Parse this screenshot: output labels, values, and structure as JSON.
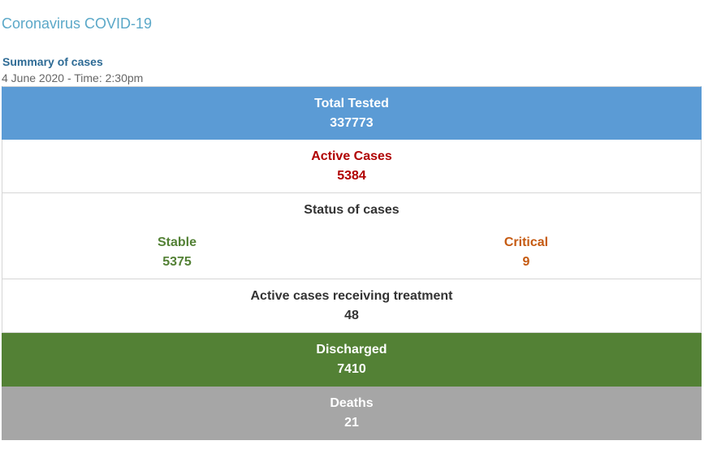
{
  "page_title": "Coronavirus COVID-19",
  "summary": {
    "heading": "Summary of cases",
    "date": "4 June 2020 - Time: 2:30pm"
  },
  "rows": {
    "total_tested": {
      "label": "Total Tested",
      "value": "337773"
    },
    "active_cases": {
      "label": "Active Cases",
      "value": "5384"
    },
    "status": {
      "label": "Status of cases",
      "stable": {
        "label": "Stable",
        "value": "5375"
      },
      "critical": {
        "label": "Critical",
        "value": "9"
      }
    },
    "treatment": {
      "label": "Active cases receiving treatment",
      "value": "48"
    },
    "discharged": {
      "label": "Discharged",
      "value": "7410"
    },
    "deaths": {
      "label": "Deaths",
      "value": "21"
    }
  },
  "colors": {
    "title": "#5ba8c8",
    "heading": "#2e6b95",
    "tested_bg": "#5b9bd5",
    "active_text": "#b00000",
    "stable_text": "#538135",
    "critical_text": "#c55a11",
    "discharged_bg": "#538135",
    "deaths_bg": "#a6a6a6"
  }
}
